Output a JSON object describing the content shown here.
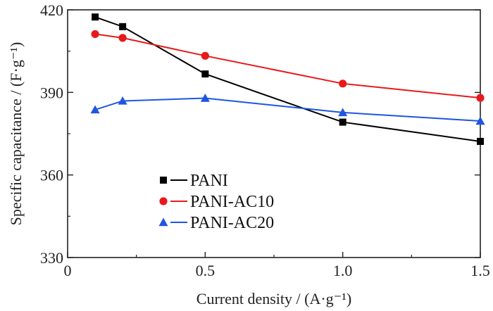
{
  "chart_data": {
    "type": "line",
    "title": "",
    "xlabel": "Current density / (A·g⁻¹)",
    "ylabel": "Specific capacitance / (F·g⁻¹)",
    "xlim": [
      0,
      1.5
    ],
    "ylim": [
      330,
      420
    ],
    "xticks": [
      0,
      0.5,
      1.0,
      1.5
    ],
    "xtick_labels": [
      "0",
      "0.5",
      "1.0",
      "1.5"
    ],
    "yticks": [
      330,
      360,
      390,
      420
    ],
    "ytick_labels": [
      "330",
      "360",
      "390",
      "420"
    ],
    "grid": false,
    "legend_position": "lower-left",
    "x": [
      0.1,
      0.2,
      0.5,
      1.0,
      1.5
    ],
    "series": [
      {
        "name": "PANI",
        "marker": "square",
        "color": "#000000",
        "values": [
          417.4,
          413.9,
          396.7,
          379.2,
          372.2
        ]
      },
      {
        "name": "PANI-AC10",
        "marker": "circle",
        "color": "#e8191b",
        "values": [
          411.2,
          409.8,
          403.3,
          393.2,
          388.0
        ]
      },
      {
        "name": "PANI-AC20",
        "marker": "triangle",
        "color": "#1f55e0",
        "values": [
          383.7,
          386.9,
          387.9,
          382.7,
          379.6
        ]
      }
    ]
  }
}
